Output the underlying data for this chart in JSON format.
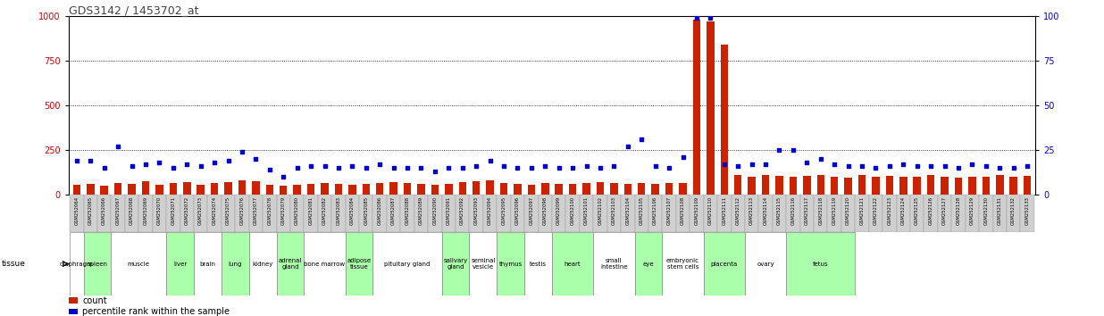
{
  "title": "GDS3142 / 1453702_at",
  "left_ylim": [
    0,
    1000
  ],
  "right_ylim": [
    0,
    100
  ],
  "left_yticks": [
    0,
    250,
    500,
    750,
    1000
  ],
  "right_yticks": [
    0,
    25,
    50,
    75,
    100
  ],
  "left_ytick_color": "#cc0000",
  "right_ytick_color": "#0000cc",
  "gsm_ids": [
    "GSM252064",
    "GSM252065",
    "GSM252066",
    "GSM252067",
    "GSM252068",
    "GSM252069",
    "GSM252070",
    "GSM252071",
    "GSM252072",
    "GSM252073",
    "GSM252074",
    "GSM252075",
    "GSM252076",
    "GSM252077",
    "GSM252078",
    "GSM252079",
    "GSM252080",
    "GSM252081",
    "GSM252082",
    "GSM252083",
    "GSM252084",
    "GSM252085",
    "GSM252086",
    "GSM252087",
    "GSM252088",
    "GSM252089",
    "GSM252090",
    "GSM252091",
    "GSM252092",
    "GSM252093",
    "GSM252094",
    "GSM252095",
    "GSM252096",
    "GSM252097",
    "GSM252098",
    "GSM252099",
    "GSM252100",
    "GSM252101",
    "GSM252102",
    "GSM252103",
    "GSM252104",
    "GSM252105",
    "GSM252106",
    "GSM252107",
    "GSM252108",
    "GSM252109",
    "GSM252110",
    "GSM252111",
    "GSM252112",
    "GSM252113",
    "GSM252114",
    "GSM252115",
    "GSM252116",
    "GSM252117",
    "GSM252118",
    "GSM252119",
    "GSM252120",
    "GSM252121",
    "GSM252122",
    "GSM252123",
    "GSM252124",
    "GSM252125",
    "GSM252126",
    "GSM252127",
    "GSM252128",
    "GSM252129",
    "GSM252130",
    "GSM252131",
    "GSM252132",
    "GSM252133"
  ],
  "count_values": [
    55,
    60,
    50,
    65,
    60,
    75,
    55,
    65,
    70,
    55,
    65,
    70,
    80,
    75,
    55,
    50,
    55,
    60,
    65,
    60,
    55,
    60,
    65,
    70,
    65,
    60,
    55,
    60,
    70,
    75,
    80,
    65,
    60,
    55,
    65,
    60,
    60,
    65,
    70,
    65,
    60,
    65,
    60,
    65,
    65,
    980,
    970,
    840,
    110,
    100,
    110,
    105,
    100,
    105,
    110,
    100,
    95,
    110,
    100,
    105,
    100,
    100,
    110,
    100,
    95,
    100,
    100,
    110,
    100,
    105
  ],
  "percentile_values": [
    19,
    19,
    15,
    27,
    16,
    17,
    18,
    15,
    17,
    16,
    18,
    19,
    24,
    20,
    14,
    10,
    15,
    16,
    16,
    15,
    16,
    15,
    17,
    15,
    15,
    15,
    13,
    15,
    15,
    16,
    19,
    16,
    15,
    15,
    16,
    15,
    15,
    16,
    15,
    16,
    27,
    31,
    16,
    15,
    21,
    99,
    99,
    17,
    16,
    17,
    17,
    25,
    25,
    18,
    20,
    17,
    16,
    16,
    15,
    16,
    17,
    16,
    16,
    16,
    15,
    17,
    16,
    15,
    15,
    16
  ],
  "tissues": [
    {
      "name": "diaphragm",
      "start": 0,
      "end": 1,
      "color": "#ffffff"
    },
    {
      "name": "spleen",
      "start": 1,
      "end": 3,
      "color": "#aaffaa"
    },
    {
      "name": "muscle",
      "start": 3,
      "end": 7,
      "color": "#ffffff"
    },
    {
      "name": "liver",
      "start": 7,
      "end": 9,
      "color": "#aaffaa"
    },
    {
      "name": "brain",
      "start": 9,
      "end": 11,
      "color": "#ffffff"
    },
    {
      "name": "lung",
      "start": 11,
      "end": 13,
      "color": "#aaffaa"
    },
    {
      "name": "kidney",
      "start": 13,
      "end": 15,
      "color": "#ffffff"
    },
    {
      "name": "adrenal\ngland",
      "start": 15,
      "end": 17,
      "color": "#aaffaa"
    },
    {
      "name": "bone marrow",
      "start": 17,
      "end": 20,
      "color": "#ffffff"
    },
    {
      "name": "adipose\ntissue",
      "start": 20,
      "end": 22,
      "color": "#aaffaa"
    },
    {
      "name": "pituitary gland",
      "start": 22,
      "end": 27,
      "color": "#ffffff"
    },
    {
      "name": "salivary\ngland",
      "start": 27,
      "end": 29,
      "color": "#aaffaa"
    },
    {
      "name": "seminal\nvesicle",
      "start": 29,
      "end": 31,
      "color": "#ffffff"
    },
    {
      "name": "thymus",
      "start": 31,
      "end": 33,
      "color": "#aaffaa"
    },
    {
      "name": "testis",
      "start": 33,
      "end": 35,
      "color": "#ffffff"
    },
    {
      "name": "heart",
      "start": 35,
      "end": 38,
      "color": "#aaffaa"
    },
    {
      "name": "small\nintestine",
      "start": 38,
      "end": 41,
      "color": "#ffffff"
    },
    {
      "name": "eye",
      "start": 41,
      "end": 43,
      "color": "#aaffaa"
    },
    {
      "name": "embryonic\nstem cells",
      "start": 43,
      "end": 46,
      "color": "#ffffff"
    },
    {
      "name": "placenta",
      "start": 46,
      "end": 49,
      "color": "#aaffaa"
    },
    {
      "name": "ovary",
      "start": 49,
      "end": 52,
      "color": "#ffffff"
    },
    {
      "name": "fetus",
      "start": 52,
      "end": 57,
      "color": "#aaffaa"
    }
  ],
  "bar_color": "#cc2200",
  "dot_color": "#0000cc",
  "bg_color": "#ffffff",
  "gsm_box_color": "#d0d0d0",
  "gsm_box_border": "#999999"
}
